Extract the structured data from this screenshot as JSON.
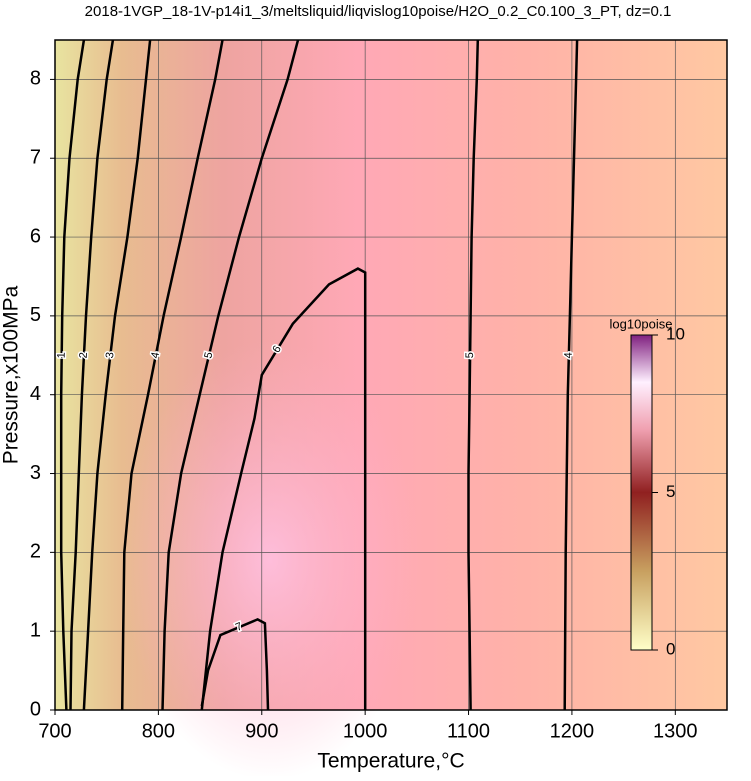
{
  "chart_data": {
    "type": "contour",
    "title": "2018-1VGP_18-1V-p14i1_3/meltsliquid/liqvislog10poise/H2O_0.2_C0.100_3_PT, dz=0.1",
    "x_label": "Temperature,°C",
    "y_label": "Pressure,x100MPa",
    "xlim": [
      700,
      1350
    ],
    "ylim": [
      0,
      8.5
    ],
    "xticks": [
      700,
      800,
      900,
      1000,
      1100,
      1200,
      1300
    ],
    "yticks": [
      0,
      1,
      2,
      3,
      4,
      5,
      6,
      7,
      8
    ],
    "grid": true,
    "contours": [
      {
        "level": 1,
        "x": [
          711,
          708,
          706,
          706,
          706,
          707,
          709,
          714,
          722,
          728
        ],
        "y": [
          0,
          1,
          2,
          3,
          4,
          5,
          6,
          7,
          8,
          8.5
        ]
      },
      {
        "level": 2,
        "x": [
          715,
          716,
          720,
          723,
          726,
          730,
          735,
          741,
          750,
          756
        ],
        "y": [
          0,
          1,
          2,
          3,
          4,
          5,
          6,
          7,
          8,
          8.5
        ]
      },
      {
        "level": 3,
        "x": [
          728,
          732,
          736,
          741,
          749,
          758,
          770,
          780,
          788,
          792
        ],
        "y": [
          0,
          1,
          2,
          3,
          4,
          5,
          6,
          7,
          8,
          8.5
        ]
      },
      {
        "level": 4,
        "x": [
          765,
          766,
          767,
          774,
          790,
          805,
          822,
          838,
          855,
          862
        ],
        "y": [
          0,
          1,
          2,
          3,
          4,
          5,
          6,
          7,
          8,
          8.5
        ]
      },
      {
        "level": 5,
        "x": [
          804,
          806,
          810,
          822,
          840,
          858,
          878,
          900,
          925,
          935
        ],
        "y": [
          0,
          1,
          2,
          3,
          4,
          5,
          6,
          7,
          8,
          8.5
        ]
      },
      {
        "level": 6,
        "x": [
          842,
          850,
          862,
          880,
          893,
          900,
          930,
          965,
          993,
          1000,
          1000,
          1000,
          1000
        ],
        "y": [
          0,
          1,
          2,
          3,
          3.7,
          4.25,
          4.9,
          5.4,
          5.6,
          5.55,
          4,
          2,
          0
        ]
      },
      {
        "level": 7,
        "x": [
          842,
          848,
          860,
          896,
          903,
          905,
          906
        ],
        "y": [
          0.05,
          0.5,
          0.95,
          1.15,
          1.1,
          0.5,
          0
        ]
      },
      {
        "level": 5,
        "x": [
          1102,
          1101,
          1100,
          1100,
          1101,
          1102,
          1103,
          1105,
          1108,
          1109
        ],
        "y": [
          0,
          1,
          2,
          3,
          4,
          5,
          6,
          7,
          8,
          8.5
        ]
      },
      {
        "level": 4,
        "x": [
          1193,
          1194,
          1196,
          1198,
          1200,
          1204,
          1205
        ],
        "y": [
          0,
          2,
          4,
          5,
          6,
          8,
          8.5
        ]
      }
    ],
    "colorbar": {
      "label": "log10poise",
      "lim": [
        0,
        10
      ],
      "ticks": [
        0,
        5,
        10
      ]
    }
  }
}
